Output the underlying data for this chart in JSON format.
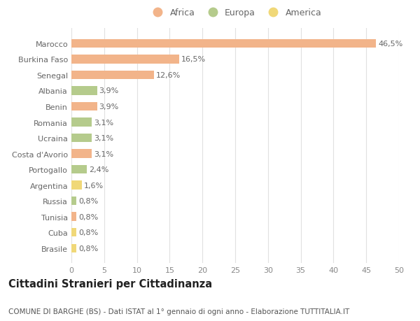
{
  "categories": [
    "Marocco",
    "Burkina Faso",
    "Senegal",
    "Albania",
    "Benin",
    "Romania",
    "Ucraina",
    "Costa d'Avorio",
    "Portogallo",
    "Argentina",
    "Russia",
    "Tunisia",
    "Cuba",
    "Brasile"
  ],
  "values": [
    46.5,
    16.5,
    12.6,
    3.9,
    3.9,
    3.1,
    3.1,
    3.1,
    2.4,
    1.6,
    0.8,
    0.8,
    0.8,
    0.8
  ],
  "labels": [
    "46,5%",
    "16,5%",
    "12,6%",
    "3,9%",
    "3,9%",
    "3,1%",
    "3,1%",
    "3,1%",
    "2,4%",
    "1,6%",
    "0,8%",
    "0,8%",
    "0,8%",
    "0,8%"
  ],
  "continents": [
    "Africa",
    "Africa",
    "Africa",
    "Europa",
    "Africa",
    "Europa",
    "Europa",
    "Africa",
    "Europa",
    "America",
    "Europa",
    "Africa",
    "America",
    "America"
  ],
  "colors": {
    "Africa": "#F2B48A",
    "Europa": "#B5CB8C",
    "America": "#F0D878"
  },
  "legend_items": [
    "Africa",
    "Europa",
    "America"
  ],
  "legend_colors": [
    "#F2B48A",
    "#B5CB8C",
    "#F0D878"
  ],
  "xlim": [
    0,
    50
  ],
  "xticks": [
    0,
    5,
    10,
    15,
    20,
    25,
    30,
    35,
    40,
    45,
    50
  ],
  "title": "Cittadini Stranieri per Cittadinanza",
  "subtitle": "COMUNE DI BARGHE (BS) - Dati ISTAT al 1° gennaio di ogni anno - Elaborazione TUTTITALIA.IT",
  "background_color": "#ffffff",
  "grid_color": "#e0e0e0",
  "bar_height": 0.55,
  "label_fontsize": 8,
  "tick_fontsize": 8,
  "title_fontsize": 10.5,
  "subtitle_fontsize": 7.5
}
